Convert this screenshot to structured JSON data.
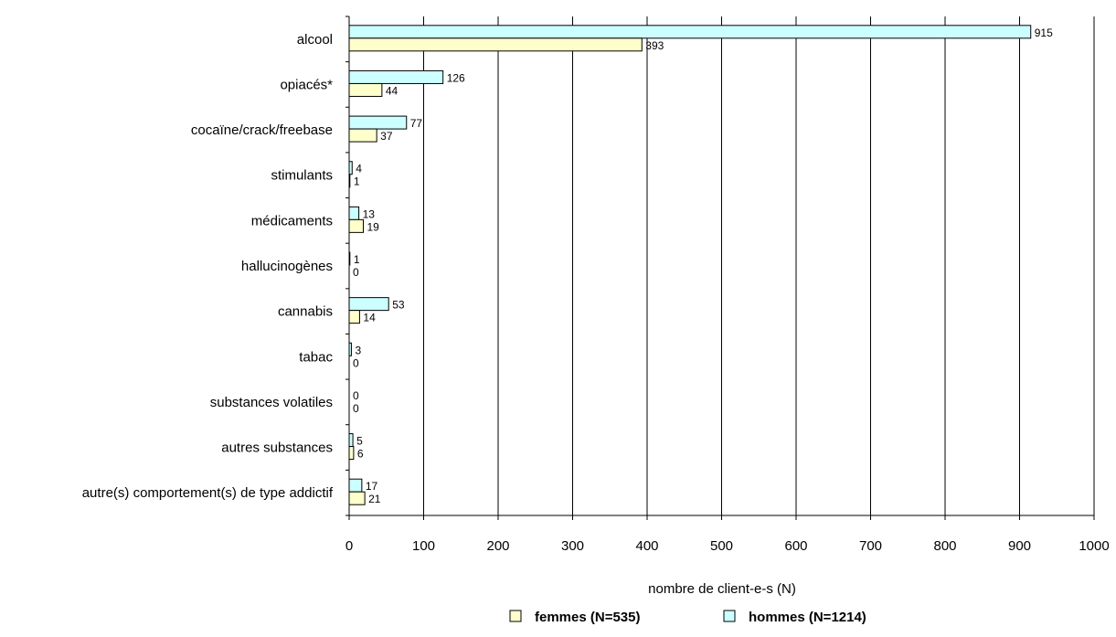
{
  "chart_data": {
    "type": "bar",
    "orientation": "horizontal",
    "title": "",
    "xlabel": "nombre de client-e-s (N)",
    "ylabel": "",
    "xlim": [
      0,
      1000
    ],
    "xticks": [
      0,
      100,
      200,
      300,
      400,
      500,
      600,
      700,
      800,
      900,
      1000
    ],
    "grid": true,
    "legend_position": "bottom",
    "categories": [
      "alcool",
      "opiacés*",
      "cocaïne/crack/freebase",
      "stimulants",
      "médicaments",
      "hallucinogènes",
      "cannabis",
      "tabac",
      "substances volatiles",
      "autres substances",
      "autre(s) comportement(s) de type addictif"
    ],
    "series": [
      {
        "name": "hommes (N=1214)",
        "color": "#ccffff",
        "values": [
          915,
          126,
          77,
          4,
          13,
          1,
          53,
          3,
          0,
          5,
          17
        ]
      },
      {
        "name": "femmes (N=535)",
        "color": "#ffffcc",
        "values": [
          393,
          44,
          37,
          1,
          19,
          0,
          14,
          0,
          0,
          6,
          21
        ]
      }
    ],
    "legend_order": [
      "femmes (N=535)",
      "hommes (N=1214)"
    ]
  }
}
